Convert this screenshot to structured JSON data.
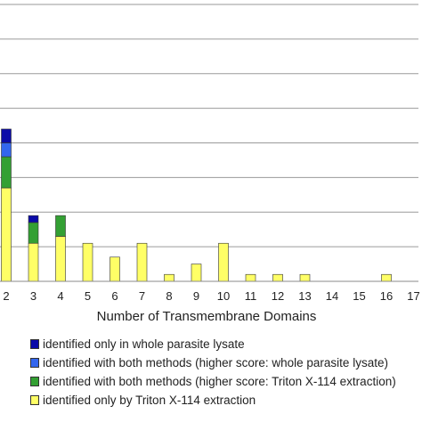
{
  "chart_data": {
    "type": "bar",
    "stacked": true,
    "title": "",
    "ylabel": "",
    "xlabel": "Number of Transmembrane Domains",
    "categories": [
      "2",
      "3",
      "4",
      "5",
      "6",
      "7",
      "8",
      "9",
      "10",
      "11",
      "12",
      "13",
      "14",
      "15",
      "16",
      "17"
    ],
    "ylim": [
      0,
      40
    ],
    "grid": true,
    "legend_position": "bottom",
    "series": [
      {
        "name": "identified only by Triton X-114 extraction",
        "color": "#ffff66",
        "values": [
          13.5,
          5.5,
          6.5,
          5.5,
          3.5,
          5.5,
          1,
          2.5,
          5.5,
          1,
          1,
          1,
          0,
          0,
          1,
          0
        ]
      },
      {
        "name": "identified with both methods (higher score: Triton X-114 extraction)",
        "color": "#33a033",
        "values": [
          4.5,
          3,
          3,
          0,
          0,
          0,
          0,
          0,
          0,
          0,
          0,
          0,
          0,
          0,
          0,
          0
        ]
      },
      {
        "name": "identified with both methods (higher score: whole parasite lysate)",
        "color": "#3366ee",
        "values": [
          2,
          0,
          0,
          0,
          0,
          0,
          0,
          0,
          0,
          0,
          0,
          0,
          0,
          0,
          0,
          0
        ]
      },
      {
        "name": "identified only in whole parasite lysate",
        "color": "#0a0aa8",
        "values": [
          2,
          1,
          0,
          0,
          0,
          0,
          0,
          0,
          0,
          0,
          0,
          0,
          0,
          0,
          0,
          0
        ]
      }
    ],
    "legend_order": [
      3,
      2,
      1,
      0
    ]
  }
}
